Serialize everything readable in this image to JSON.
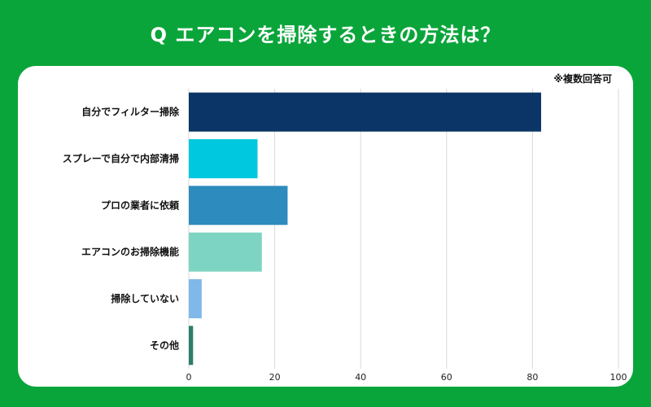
{
  "chart_data": {
    "type": "bar",
    "orientation": "horizontal",
    "title": "Q エアコンを掃除するときの方法は？",
    "note": "※複数回答可",
    "categories": [
      "自分でフィルター掃除",
      "スプレーで自分で内部清掃",
      "プロの業者に依頼",
      "エアコンのお掃除機能",
      "掃除していない",
      "その他"
    ],
    "values": [
      82,
      16,
      23,
      17,
      3,
      1
    ],
    "colors": [
      "#0b3566",
      "#00c8de",
      "#2e8bbd",
      "#7dd4c2",
      "#80b8ea",
      "#2e7d6a"
    ],
    "xlim": [
      0,
      100
    ],
    "xticks": [
      "0",
      "20",
      "40",
      "60",
      "80",
      "100"
    ],
    "xlabel": "",
    "ylabel": "",
    "grid": true,
    "legend": "none"
  }
}
